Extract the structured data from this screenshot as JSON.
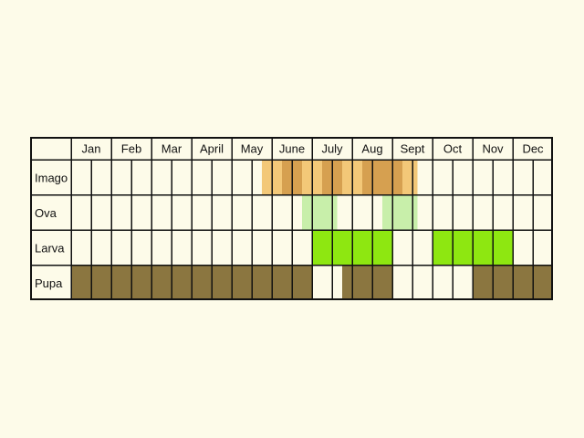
{
  "months": [
    "Jan",
    "Feb",
    "Mar",
    "April",
    "May",
    "June",
    "July",
    "Aug",
    "Sept",
    "Oct",
    "Nov",
    "Dec"
  ],
  "colors": {
    "background": "#fdfbe9",
    "grid": "#111111",
    "imago": "#f3c878",
    "imago_dark": "#d6a050",
    "ova": "#c8efaa",
    "larva": "#8ee711",
    "pupa": "#8b7640"
  },
  "stages": [
    {
      "label": "Imago",
      "color": "imago",
      "spans": [
        [
          9.5,
          17.25
        ]
      ],
      "accent_spans": [
        [
          10.5,
          11.5
        ],
        [
          12.5,
          13.5
        ],
        [
          14.5,
          15.5
        ],
        [
          15.5,
          16.5
        ]
      ]
    },
    {
      "label": "Ova",
      "color": "ova",
      "spans": [
        [
          11.5,
          13.25
        ],
        [
          15.5,
          17.25
        ]
      ],
      "accent_spans": []
    },
    {
      "label": "Larva",
      "color": "larva",
      "spans": [
        [
          12,
          16
        ],
        [
          18,
          22
        ]
      ],
      "accent_spans": []
    },
    {
      "label": "Pupa",
      "color": "pupa",
      "spans": [
        [
          0,
          12
        ],
        [
          13.5,
          16
        ],
        [
          20,
          24
        ]
      ],
      "accent_spans": []
    }
  ]
}
